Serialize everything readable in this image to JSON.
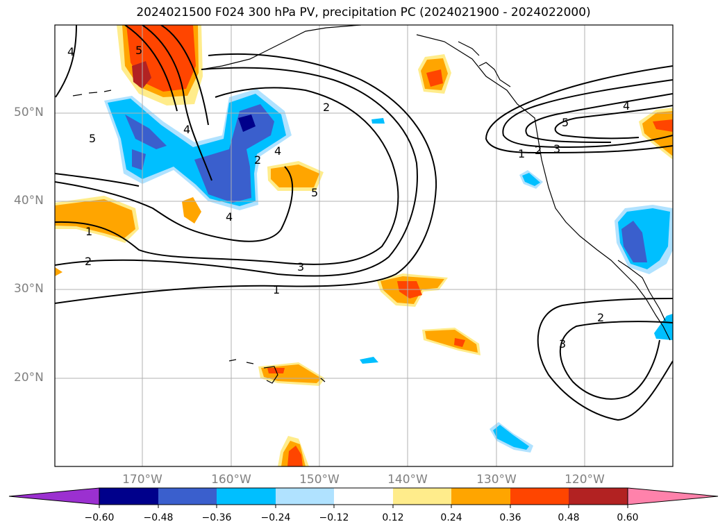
{
  "title": "2024021500 F024 300 hPa PV, precipitation PC (2024021900 - 2024022000)",
  "lat_labels": [
    "50°N",
    "40°N",
    "30°N",
    "20°N"
  ],
  "lon_labels": [
    "170°W",
    "160°W",
    "150°W",
    "140°W",
    "130°W",
    "120°W"
  ],
  "contour_labels": [
    "1",
    "2",
    "3",
    "4",
    "5"
  ],
  "colorbar": {
    "ticks": [
      "−0.60",
      "−0.48",
      "−0.36",
      "−0.24",
      "−0.12",
      "0.12",
      "0.24",
      "0.36",
      "0.48",
      "0.60"
    ],
    "colors": [
      "#9b30d0",
      "#00008b",
      "#3a5fcd",
      "#00bfff",
      "#b0e2ff",
      "#ffffff",
      "#ffec8b",
      "#ffa500",
      "#ff4500",
      "#b22222",
      "#ff82ab"
    ]
  },
  "shading_colors": {
    "neg_weak": "#00bfff",
    "neg_mid": "#3a5fcd",
    "neg_strong": "#00008b",
    "pos_light": "#ffec8b",
    "pos_weak": "#ffa500",
    "pos_mid": "#ff4500",
    "pos_strong": "#b22222"
  }
}
